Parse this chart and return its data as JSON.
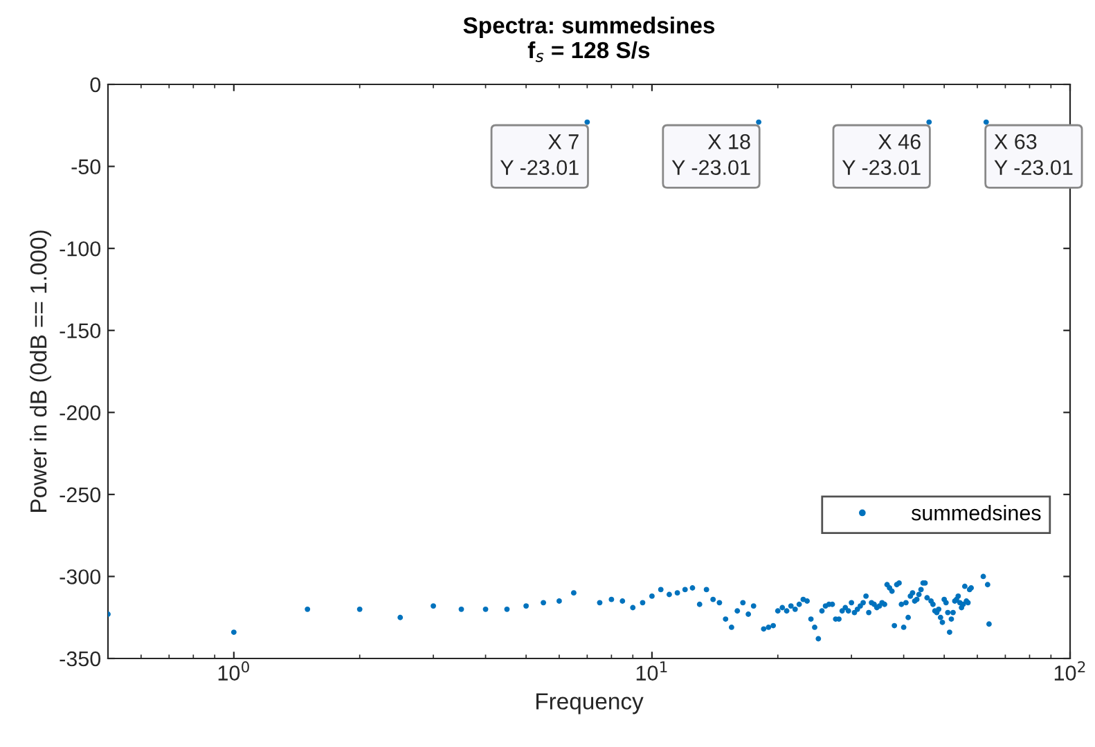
{
  "chart_data": {
    "type": "scatter",
    "title": "Spectra: summedsines",
    "subtitle": "f$_{s}$ = 128 S/s",
    "xlabel": "Frequency",
    "ylabel": "Power in dB (0dB == 1.000)",
    "log": "x",
    "xlim": [
      0.5,
      100
    ],
    "ylim": [
      -350,
      0
    ],
    "xticks": [
      {
        "value": 1,
        "label": "10$^{0}$"
      },
      {
        "value": 10,
        "label": "10$^{1}$"
      },
      {
        "value": 100,
        "label": "10$^{2}$"
      }
    ],
    "yticks": [
      -350,
      -300,
      -250,
      -200,
      -150,
      -100,
      -50,
      0
    ],
    "grid": false,
    "legend": "lower right",
    "marker": "circle",
    "series": [
      {
        "name": "summedsines",
        "color": "#0072bd",
        "x": [
          0.5,
          1,
          1.5,
          2,
          2.5,
          3,
          3.5,
          4,
          4.5,
          5,
          5.5,
          6,
          6.5,
          7,
          7.5,
          8,
          8.5,
          9,
          9.5,
          10,
          10.5,
          11,
          11.5,
          12,
          12.5,
          13,
          13.5,
          14,
          14.5,
          15,
          15.5,
          16,
          16.5,
          17,
          17.5,
          18,
          18.5,
          19,
          19.5,
          20,
          20.5,
          21,
          21.5,
          22,
          22.5,
          23,
          23.5,
          24,
          24.5,
          25,
          25.5,
          26,
          26.5,
          27,
          27.5,
          28,
          28.5,
          29,
          29.5,
          30,
          30.5,
          31,
          31.5,
          32,
          32.5,
          33,
          33.5,
          34,
          34.5,
          35,
          35.5,
          36,
          36.5,
          37,
          37.5,
          38,
          38.5,
          39,
          39.5,
          40,
          40.5,
          41,
          41.5,
          42,
          42.5,
          43,
          43.5,
          44,
          44.5,
          45,
          45.5,
          46,
          46.5,
          47,
          47.5,
          48,
          48.5,
          49,
          49.5,
          50,
          50.5,
          51,
          51.5,
          52,
          52.5,
          53,
          53.5,
          54,
          54.5,
          55,
          55.5,
          56,
          56.5,
          57,
          57.5,
          58,
          62,
          63,
          63.5,
          64
        ],
        "values": [
          -323,
          -334,
          -320,
          -320,
          -325,
          -318,
          -320,
          -320,
          -320,
          -318,
          -316,
          -315,
          -310,
          -23.01,
          -316,
          -314,
          -315,
          -319,
          -316,
          -312,
          -308,
          -311,
          -310,
          -308,
          -307,
          -317,
          -308,
          -314,
          -316,
          -326,
          -331,
          -321,
          -316,
          -323,
          -318,
          -23.01,
          -332,
          -331,
          -330,
          -321,
          -319,
          -321,
          -318,
          -320,
          -317,
          -314,
          -315,
          -326,
          -331,
          -338,
          -321,
          -318,
          -317,
          -317,
          -326,
          -326,
          -321,
          -319,
          -321,
          -316,
          -322,
          -320,
          -318,
          -316,
          -312,
          -322,
          -316,
          -317,
          -319,
          -318,
          -316,
          -317,
          -305,
          -307,
          -309,
          -330,
          -305,
          -304,
          -317,
          -331,
          -316,
          -325,
          -312,
          -310,
          -315,
          -314,
          -311,
          -308,
          -304,
          -304,
          -313,
          -23.01,
          -315,
          -317,
          -321,
          -322,
          -320,
          -325,
          -328,
          -314,
          -316,
          -322,
          -334,
          -326,
          -322,
          -315,
          -314,
          -312,
          -316,
          -319,
          -317,
          -306,
          -315,
          -316,
          -308,
          -307,
          -300,
          -23.01,
          -305,
          -329
        ]
      }
    ],
    "annotations": [
      {
        "text": "X 7\nY -23.01",
        "x": 7,
        "y": -23.01
      },
      {
        "text": "X 18\nY -23.01",
        "x": 18,
        "y": -23.01
      },
      {
        "text": "X 46\nY -23.01",
        "x": 46,
        "y": -23.01
      },
      {
        "text": "X 63\nY -23.01",
        "x": 63,
        "y": -23.01
      }
    ]
  }
}
